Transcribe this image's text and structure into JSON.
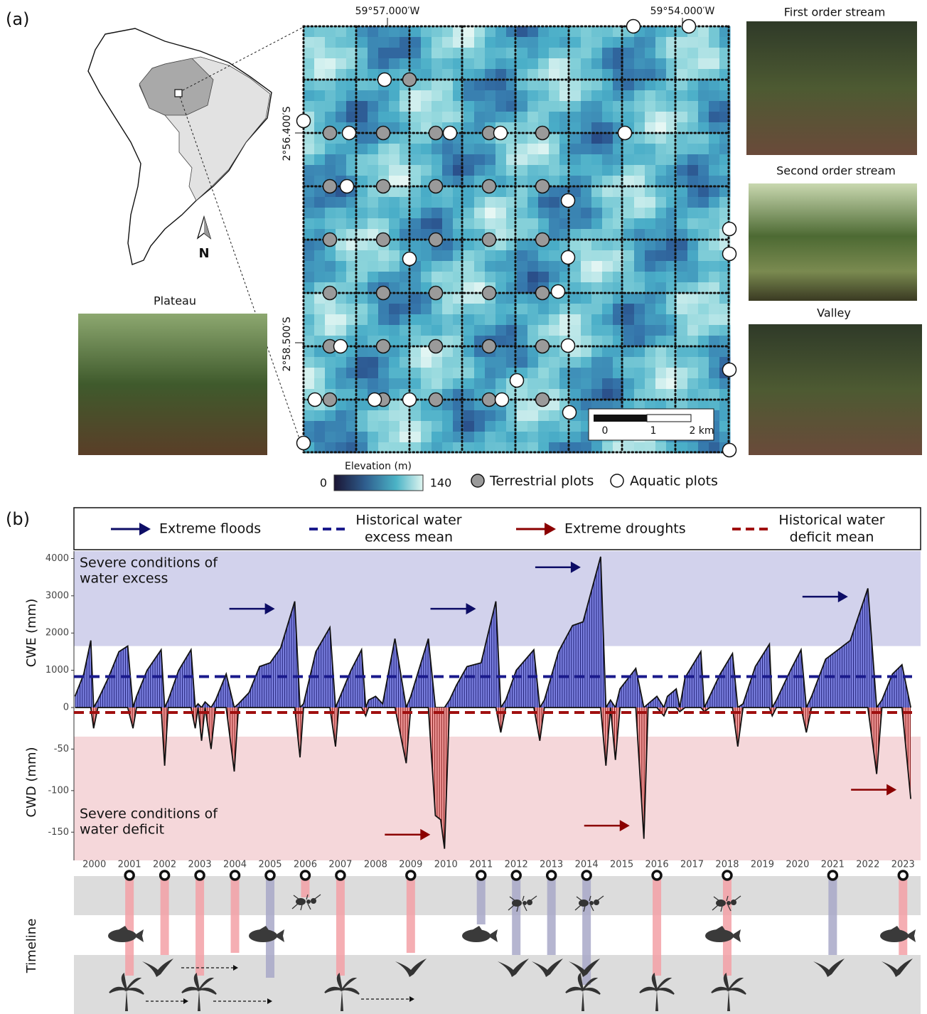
{
  "panel_a": {
    "label": "(a)",
    "map": {
      "lon_labels": [
        "59°57.000′W",
        "59°54.000′W"
      ],
      "lat_labels": [
        "2°56.400′S",
        "2°58.500′S"
      ],
      "north": "N",
      "scale": [
        0,
        1,
        {
          "value": 2,
          "label": "2 km"
        }
      ],
      "colorbar": {
        "title": "Elevation (m)",
        "ticks": [
          0,
          140
        ]
      },
      "legend": [
        "Terrestrial plots",
        "Aquatic plots"
      ]
    },
    "photos": [
      "Plateau",
      "First order stream",
      "Second order stream",
      "Valley"
    ]
  },
  "chart_data": {
    "label": "(b)",
    "type": "area",
    "legend": [
      [
        "Extreme floods"
      ],
      [
        "Historical water",
        "excess mean"
      ],
      [
        "Extreme droughts"
      ],
      [
        "Historical water",
        "deficit mean"
      ]
    ],
    "y_label": "CWE (mm)",
    "y2_label": "CWD (mm)",
    "xlim": [
      1999.42,
      2023.5
    ],
    "xticks": [
      2000,
      2001,
      2002,
      2003,
      2004,
      2005,
      2006,
      2007,
      2008,
      2009,
      2010,
      2011,
      2012,
      2013,
      2014,
      2015,
      2016,
      2017,
      2018,
      2019,
      2020,
      2021,
      2022,
      2023
    ],
    "ylim": [
      0,
      4200
    ],
    "yticks": [
      0,
      1000,
      2000,
      3000,
      4000
    ],
    "y2lim": [
      -184,
      0
    ],
    "y2ticks": [
      -150,
      -100,
      -50
    ],
    "x": [
      1999.45,
      1999.7,
      1999.9,
      1999.98,
      2000.1,
      2000.4,
      2000.7,
      2000.95,
      2001.1,
      2001.2,
      2001.5,
      2001.9,
      2002.0,
      2002.1,
      2002.4,
      2002.75,
      2002.87,
      2002.95,
      2003.05,
      2003.15,
      2003.32,
      2003.45,
      2003.75,
      2003.98,
      2004.1,
      2004.4,
      2004.7,
      2005.0,
      2005.3,
      2005.7,
      2005.85,
      2005.95,
      2006.3,
      2006.7,
      2006.86,
      2006.95,
      2007.3,
      2007.6,
      2007.72,
      2007.8,
      2008.0,
      2008.2,
      2008.55,
      2008.87,
      2009.0,
      2009.5,
      2009.7,
      2009.85,
      2009.96,
      2010.1,
      2010.3,
      2010.6,
      2011.0,
      2011.42,
      2011.56,
      2011.7,
      2012.0,
      2012.5,
      2012.67,
      2012.8,
      2013.2,
      2013.6,
      2013.9,
      2014.4,
      2014.55,
      2014.68,
      2014.82,
      2014.95,
      2015.4,
      2015.63,
      2015.75,
      2016.0,
      2016.2,
      2016.3,
      2016.55,
      2016.65,
      2016.8,
      2017.25,
      2017.35,
      2017.5,
      2017.8,
      2018.15,
      2018.3,
      2018.45,
      2018.8,
      2019.2,
      2019.28,
      2019.4,
      2019.8,
      2020.1,
      2020.25,
      2020.4,
      2020.8,
      2021.5,
      2022.0,
      2022.25,
      2022.4,
      2022.7,
      2022.97,
      2023.22
    ],
    "series": [
      {
        "color": "#5a5fd0",
        "values": [
          300,
          900,
          1800,
          0,
          200,
          800,
          1500,
          1650,
          0,
          300,
          1000,
          1550,
          0,
          200,
          1000,
          1550,
          0,
          100,
          0,
          150,
          0,
          200,
          900,
          0,
          100,
          400,
          1100,
          1200,
          1600,
          2850,
          0,
          100,
          1500,
          2150,
          0,
          200,
          1000,
          1550,
          0,
          200,
          300,
          100,
          1850,
          0,
          300,
          1850,
          0,
          0,
          0,
          200,
          600,
          1100,
          1200,
          2850,
          0,
          200,
          1000,
          1550,
          0,
          200,
          1500,
          2200,
          2300,
          4050,
          0,
          200,
          0,
          500,
          1050,
          0,
          100,
          300,
          0,
          300,
          500,
          0,
          800,
          1500,
          0,
          300,
          900,
          1450,
          0,
          100,
          1100,
          1700,
          0,
          200,
          1000,
          1550,
          0,
          300,
          1300,
          1800,
          3200,
          0,
          200,
          900,
          1150,
          0
        ]
      },
      {
        "color": "#ee7c7c",
        "axis": "y2",
        "values": [
          0,
          0,
          0,
          -25,
          0,
          0,
          0,
          0,
          -25,
          0,
          0,
          0,
          -70,
          0,
          0,
          0,
          -25,
          0,
          -40,
          0,
          -50,
          0,
          0,
          -77,
          0,
          0,
          0,
          0,
          0,
          0,
          -60,
          0,
          0,
          0,
          -47,
          0,
          0,
          0,
          -10,
          0,
          0,
          0,
          0,
          -67,
          0,
          0,
          -130,
          -135,
          -170,
          0,
          0,
          0,
          0,
          0,
          -30,
          0,
          0,
          0,
          -40,
          0,
          0,
          0,
          0,
          0,
          -70,
          0,
          -63,
          0,
          0,
          -158,
          0,
          0,
          -10,
          0,
          0,
          -5,
          0,
          0,
          -5,
          0,
          0,
          0,
          -47,
          0,
          0,
          0,
          -10,
          0,
          0,
          0,
          -30,
          0,
          0,
          0,
          0,
          -80,
          0,
          0,
          0,
          -110
        ]
      }
    ],
    "reference_lines": [
      {
        "value": 830,
        "color": "#1a1a8c"
      },
      {
        "value": -6,
        "axis": "y2",
        "color": "#a01010"
      }
    ],
    "bands": [
      {
        "from": 1650,
        "color": "#d2d2ec",
        "text": [
          "Severe conditions of",
          "water excess"
        ],
        "text_color": "#1a1a8c"
      },
      {
        "from": -35,
        "axis": "y2",
        "color": "#f5d7da",
        "text": [
          "Severe conditions of",
          "water deficit"
        ],
        "text_color": "#8b0000"
      }
    ],
    "flood_events": [
      2005.7,
      2011.42,
      2014.4,
      2022.0
    ],
    "drought_events": [
      2009.96,
      2015.63,
      2023.22
    ],
    "flood_color": "#0d0d66",
    "drought_color": "#8b0000",
    "timeline": {
      "label": "Timeline",
      "x": [
        2001,
        2002,
        2003,
        2004,
        2005,
        2006,
        2007,
        2009,
        2011,
        2012,
        2013,
        2014,
        2016,
        2018,
        2021,
        2023
      ],
      "colors": [
        "#f3a0a6",
        "#f3a0a6",
        "#f3a0a6",
        "#f3a0a6",
        "#a8a8c8",
        "#f3a0a6",
        "#f3a0a6",
        "#f3a0a6",
        "#a8a8c8",
        "#a8a8c8",
        "#a8a8c8",
        "#a8a8c8",
        "#f3a0a6",
        "#f3a0a6",
        "#a8a8c8",
        "#f3a0a6"
      ]
    }
  }
}
